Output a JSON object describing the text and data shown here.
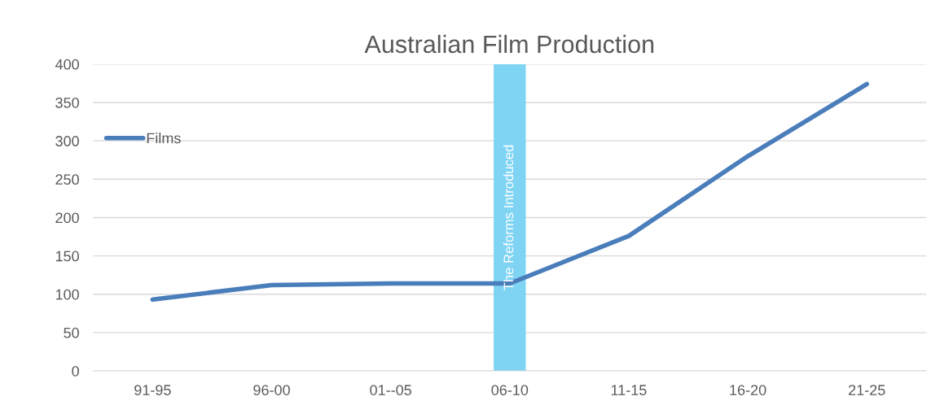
{
  "chart_data": {
    "type": "line",
    "title": "Australian Film Production",
    "categories": [
      "91-95",
      "96-00",
      "01--05",
      "06-10",
      "11-15",
      "16-20",
      "21-25"
    ],
    "series": [
      {
        "type": "bar",
        "color": "#7fd4f3",
        "values": [
          null,
          null,
          null,
          400,
          null,
          null,
          null
        ]
      },
      {
        "name": "Films",
        "color": "#4a7ebb",
        "values": [
          93,
          112,
          114,
          114,
          176,
          280,
          374
        ]
      }
    ],
    "annotations": [
      "The Reforms Introduced"
    ],
    "ylim": [
      0,
      400
    ],
    "yticks": [
      0,
      50,
      100,
      150,
      200,
      250,
      300,
      350,
      400
    ],
    "grid": "y",
    "legend": "top left",
    "line_style": "solid",
    "marker": "none"
  }
}
